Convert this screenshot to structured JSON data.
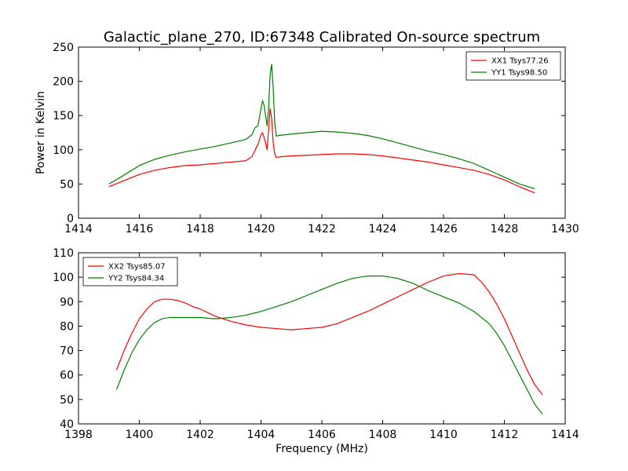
{
  "figure": {
    "title": "Galactic_plane_270, ID:67348 Calibrated On-source spectrum"
  },
  "chart_data": [
    {
      "type": "line",
      "title": "Galactic_plane_270, ID:67348 Calibrated On-source spectrum",
      "xlabel": "",
      "ylabel": "Power in Kelvin",
      "xlim": [
        1414,
        1430
      ],
      "ylim": [
        0,
        250
      ],
      "xticks": [
        1414,
        1416,
        1418,
        1420,
        1422,
        1424,
        1426,
        1428,
        1430
      ],
      "yticks": [
        0,
        50,
        100,
        150,
        200,
        250
      ],
      "grid": false,
      "legend": "top-right",
      "series": [
        {
          "name": "XX1 Tsys77.26",
          "color": "#ff0000",
          "x": [
            1415.0,
            1415.5,
            1416.0,
            1416.5,
            1417.0,
            1417.5,
            1418.0,
            1418.5,
            1419.0,
            1419.5,
            1419.7,
            1419.9,
            1420.0,
            1420.05,
            1420.1,
            1420.15,
            1420.2,
            1420.25,
            1420.3,
            1420.35,
            1420.4,
            1420.45,
            1420.5,
            1420.7,
            1421.0,
            1421.5,
            1422.0,
            1422.5,
            1423.0,
            1423.5,
            1424.0,
            1424.5,
            1425.0,
            1425.5,
            1426.0,
            1426.5,
            1427.0,
            1427.5,
            1428.0,
            1428.5,
            1429.0
          ],
          "values": [
            46,
            55,
            64,
            70,
            74,
            77,
            78,
            80,
            82,
            84,
            90,
            108,
            122,
            125,
            118,
            110,
            100,
            130,
            160,
            145,
            110,
            94,
            89,
            90,
            91,
            92,
            93,
            94,
            94,
            93,
            91,
            88,
            85,
            82,
            78,
            74,
            70,
            64,
            56,
            46,
            37
          ]
        },
        {
          "name": "YY1 Tsys98.50",
          "color": "#008000",
          "x": [
            1415.0,
            1415.5,
            1416.0,
            1416.5,
            1417.0,
            1417.5,
            1418.0,
            1418.5,
            1419.0,
            1419.5,
            1419.7,
            1419.8,
            1419.9,
            1420.0,
            1420.05,
            1420.1,
            1420.15,
            1420.2,
            1420.25,
            1420.3,
            1420.35,
            1420.4,
            1420.45,
            1420.5,
            1420.6,
            1421.0,
            1421.5,
            1422.0,
            1422.5,
            1423.0,
            1423.5,
            1424.0,
            1424.5,
            1425.0,
            1425.5,
            1426.0,
            1426.5,
            1427.0,
            1427.5,
            1428.0,
            1428.5,
            1429.0
          ],
          "values": [
            50,
            63,
            77,
            86,
            92,
            97,
            101,
            105,
            110,
            115,
            122,
            132,
            135,
            160,
            172,
            165,
            150,
            135,
            160,
            210,
            225,
            190,
            140,
            120,
            121,
            123,
            125,
            127,
            126,
            124,
            121,
            116,
            110,
            104,
            98,
            93,
            87,
            80,
            70,
            60,
            50,
            43
          ]
        }
      ]
    },
    {
      "type": "line",
      "title": "",
      "xlabel": "Frequency (MHz)",
      "ylabel": "",
      "xlim": [
        1398,
        1414
      ],
      "ylim": [
        40,
        110
      ],
      "xticks": [
        1398,
        1400,
        1402,
        1404,
        1406,
        1408,
        1410,
        1412,
        1414
      ],
      "yticks": [
        40,
        50,
        60,
        70,
        80,
        90,
        100,
        110
      ],
      "grid": false,
      "legend": "top-left",
      "series": [
        {
          "name": "XX2 Tsys85.07",
          "color": "#ff0000",
          "x": [
            1399.25,
            1399.5,
            1399.75,
            1400.0,
            1400.25,
            1400.5,
            1400.75,
            1401.0,
            1401.25,
            1401.5,
            1401.75,
            1402.0,
            1402.5,
            1403.0,
            1403.5,
            1404.0,
            1404.5,
            1405.0,
            1405.5,
            1406.0,
            1406.5,
            1407.0,
            1407.5,
            1408.0,
            1408.5,
            1409.0,
            1409.5,
            1410.0,
            1410.5,
            1411.0,
            1411.25,
            1411.5,
            1411.75,
            1412.0,
            1412.25,
            1412.5,
            1412.75,
            1413.0,
            1413.25
          ],
          "values": [
            62,
            70,
            77,
            83,
            87,
            90,
            91,
            91,
            90.5,
            89.5,
            88,
            87,
            84,
            82,
            80.5,
            79.5,
            79,
            78.5,
            79,
            79.5,
            81,
            83.5,
            86,
            89,
            92,
            95,
            98,
            100.5,
            101.5,
            101,
            98,
            94,
            89,
            83,
            76,
            69,
            62,
            56,
            52
          ]
        },
        {
          "name": "YY2 Tsys84.34",
          "color": "#008000",
          "x": [
            1399.25,
            1399.5,
            1399.75,
            1400.0,
            1400.25,
            1400.5,
            1400.75,
            1401.0,
            1401.5,
            1402.0,
            1402.5,
            1403.0,
            1403.5,
            1404.0,
            1404.5,
            1405.0,
            1405.5,
            1406.0,
            1406.5,
            1407.0,
            1407.5,
            1408.0,
            1408.5,
            1409.0,
            1409.5,
            1410.0,
            1410.5,
            1411.0,
            1411.5,
            1411.75,
            1412.0,
            1412.25,
            1412.5,
            1412.75,
            1413.0,
            1413.25
          ],
          "values": [
            54,
            62,
            69,
            74.5,
            78.5,
            81.5,
            83,
            83.5,
            83.5,
            83.5,
            83,
            83.5,
            84.5,
            86,
            88,
            90,
            92.5,
            95,
            97.5,
            99.5,
            100.5,
            100.5,
            99.5,
            97.5,
            94.5,
            92,
            89.5,
            86,
            81,
            77,
            72,
            66,
            60,
            54,
            48,
            44
          ]
        }
      ]
    }
  ]
}
